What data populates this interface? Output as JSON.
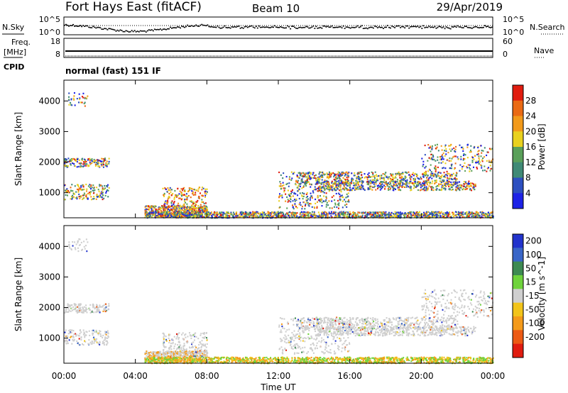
{
  "header": {
    "title": "Fort Hays East (fitACF)",
    "beam": "Beam 10",
    "date": "29/Apr/2019",
    "mode": "normal (fast) 151 IF"
  },
  "side_labels": {
    "nsky": "N.Sky",
    "nsearch": "N.Search",
    "freq_top": "Freq.",
    "freq_unit": "[MHz]",
    "nave": "Nave",
    "cpid": "CPID"
  },
  "chart_data": [
    {
      "type": "line",
      "name": "noise",
      "left_axis": {
        "ticks": [
          "10^5",
          "10^0"
        ]
      },
      "right_axis": {
        "ticks": [
          "10^5",
          "10^0"
        ]
      }
    },
    {
      "type": "line",
      "name": "frequency",
      "left_axis": {
        "ticks": [
          "18",
          "8"
        ]
      },
      "right_axis": {
        "ticks": [
          "60",
          "0"
        ]
      }
    },
    {
      "type": "heatmap",
      "name": "power",
      "ylabel": "Slant Range [km]",
      "yticks": [
        "1000",
        "2000",
        "3000",
        "4000"
      ],
      "colorbar_label": "Power [dB]",
      "colorbar_ticks": [
        "4",
        "8",
        "12",
        "16",
        "20",
        "24",
        "28"
      ],
      "colors": [
        "#1d22e6",
        "#2d4fc0",
        "#3f8a76",
        "#5aa05a",
        "#e9d11e",
        "#f29a1b",
        "#ea6a14",
        "#e01c0f"
      ]
    },
    {
      "type": "heatmap",
      "name": "velocity",
      "ylabel": "Slant Range [km]",
      "yticks": [
        "1000",
        "2000",
        "3000",
        "4000"
      ],
      "colorbar_label": "Velocity [m s^-1]",
      "colorbar_ticks": [
        "200",
        "100",
        "50",
        "15",
        "-15",
        "-50",
        "-100",
        "-200"
      ],
      "colors": [
        "#2233cc",
        "#3a66c8",
        "#3d8a52",
        "#6fd33c",
        "#cfcfcf",
        "#f2c41a",
        "#f49a1a",
        "#ec5a14",
        "#e01c10"
      ]
    }
  ],
  "time_axis": {
    "ticks": [
      "00:00",
      "04:00",
      "08:00",
      "12:00",
      "16:00",
      "20:00",
      "00:00"
    ],
    "label": "Time UT"
  }
}
